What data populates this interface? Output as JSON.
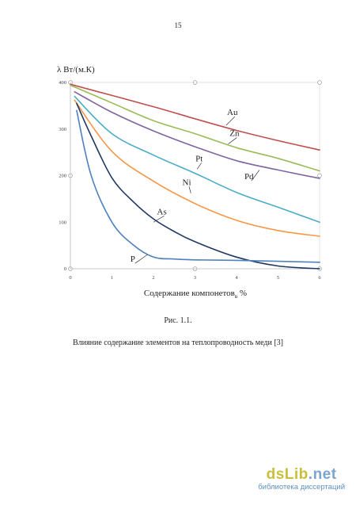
{
  "page": {
    "number": "15"
  },
  "chart_data": {
    "type": "line",
    "ylabel": "λ Вт/(м.К)",
    "xlabel_main": "Содержание компонетов",
    "xlabel_sub": "в",
    "xlabel_unit": "%",
    "xlim": [
      0,
      6
    ],
    "ylim": [
      0,
      400
    ],
    "xticks": [
      0,
      1,
      2,
      3,
      4,
      5,
      6
    ],
    "yticks": [
      0,
      100,
      200,
      300,
      400
    ],
    "grid": false,
    "legend": "none",
    "series": [
      {
        "name": "Au",
        "color": "#c0504d",
        "label_at": [
          3.9,
          330
        ],
        "leader_to": [
          3.75,
          308
        ],
        "points": [
          [
            0,
            396
          ],
          [
            1,
            372
          ],
          [
            2,
            348
          ],
          [
            3,
            322
          ],
          [
            4,
            297
          ],
          [
            5,
            275
          ],
          [
            6,
            255
          ]
        ]
      },
      {
        "name": "Zn",
        "color": "#9bbb59",
        "label_at": [
          3.95,
          285
        ],
        "leader_to": [
          3.8,
          268
        ],
        "points": [
          [
            0,
            394
          ],
          [
            1,
            356
          ],
          [
            2,
            318
          ],
          [
            3,
            290
          ],
          [
            4,
            260
          ],
          [
            5,
            237
          ],
          [
            6,
            210
          ]
        ]
      },
      {
        "name": "Pd",
        "color": "#8064a2",
        "label_at": [
          4.3,
          192
        ],
        "leader_to": [
          4.55,
          212
        ],
        "points": [
          [
            0.1,
            380
          ],
          [
            1,
            336
          ],
          [
            2,
            296
          ],
          [
            3,
            262
          ],
          [
            4,
            232
          ],
          [
            5,
            212
          ],
          [
            6,
            194
          ]
        ]
      },
      {
        "name": "Pt",
        "color": "#4bacc6",
        "label_at": [
          3.1,
          231
        ],
        "leader_to": [
          3.05,
          214
        ],
        "points": [
          [
            0.1,
            370
          ],
          [
            1,
            290
          ],
          [
            2,
            244
          ],
          [
            3,
            205
          ],
          [
            4,
            164
          ],
          [
            5,
            132
          ],
          [
            6,
            100
          ]
        ]
      },
      {
        "name": "Ni",
        "color": "#f79646",
        "label_at": [
          2.8,
          180
        ],
        "leader_to": [
          2.9,
          162
        ],
        "points": [
          [
            0.1,
            362
          ],
          [
            1,
            252
          ],
          [
            2,
            188
          ],
          [
            3,
            140
          ],
          [
            4,
            104
          ],
          [
            5,
            82
          ],
          [
            6,
            70
          ]
        ]
      },
      {
        "name": "As",
        "color": "#1f3864",
        "label_at": [
          2.2,
          117
        ],
        "leader_to": [
          2.0,
          100
        ],
        "points": [
          [
            0.15,
            355
          ],
          [
            0.5,
            285
          ],
          [
            1,
            195
          ],
          [
            1.5,
            145
          ],
          [
            2,
            107
          ],
          [
            2.5,
            80
          ],
          [
            3,
            58
          ],
          [
            4,
            25
          ],
          [
            5,
            6
          ],
          [
            6,
            0
          ]
        ]
      },
      {
        "name": "P",
        "color": "#4f81bd",
        "label_at": [
          1.5,
          15
        ],
        "leader_to": [
          1.85,
          30
        ],
        "points": [
          [
            0.15,
            340
          ],
          [
            0.5,
            200
          ],
          [
            1,
            100
          ],
          [
            1.5,
            52
          ],
          [
            2,
            25
          ],
          [
            2.5,
            21
          ],
          [
            3,
            19
          ],
          [
            4,
            18
          ],
          [
            5,
            16
          ],
          [
            6,
            14
          ]
        ]
      }
    ]
  },
  "captions": {
    "figure": "Рис. 1.1.",
    "text": "Влияние содержание элементов на теплопроводность меди [3]"
  },
  "watermark": {
    "logo_part1": "dsLib",
    "logo_part2": ".net",
    "subtitle": "библиотека диссертаций"
  }
}
